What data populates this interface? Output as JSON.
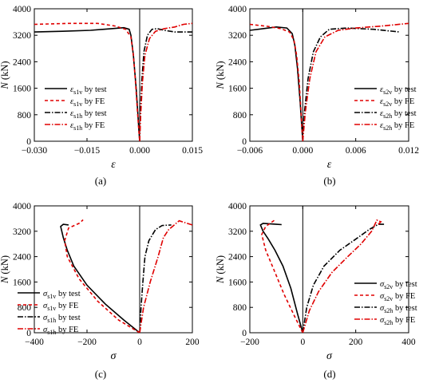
{
  "chart_data": [
    {
      "type": "line",
      "panel_label": "(a)",
      "xlabel": "ε",
      "ylabel": "N (kN)",
      "xlim": [
        -0.03,
        0.015
      ],
      "ylim": [
        0,
        4000
      ],
      "xticks": [
        -0.03,
        -0.015,
        0.0,
        0.015
      ],
      "xtick_labels": [
        "−0.030",
        "−0.015",
        "0.000",
        "0.015"
      ],
      "yticks": [
        0,
        800,
        1600,
        2400,
        3200,
        4000
      ],
      "ytick_labels": [
        "0",
        "800",
        "1600",
        "2400",
        "3200",
        "4000"
      ],
      "vline": 0,
      "legend": "bottom-left",
      "series": [
        {
          "name": "ε",
          "sub": "s1v",
          "suffix": " by test",
          "color": "#000000",
          "dash": "solid",
          "x": [
            -0.03,
            -0.022,
            -0.014,
            -0.008,
            -0.0045,
            -0.003,
            -0.0025,
            -0.0018,
            -0.001,
            -0.0005,
            -0.0002,
            0
          ],
          "y": [
            3300,
            3320,
            3350,
            3400,
            3430,
            3380,
            3200,
            2600,
            1600,
            800,
            300,
            0
          ]
        },
        {
          "name": "ε",
          "sub": "s1v",
          "suffix": " by FE",
          "color": "#e00000",
          "dash": "4,3",
          "x": [
            -0.03,
            -0.02,
            -0.012,
            -0.007,
            -0.004,
            -0.0025,
            -0.0018,
            -0.0012,
            -0.0007,
            -0.0003,
            0
          ],
          "y": [
            3530,
            3560,
            3560,
            3480,
            3380,
            3150,
            2600,
            1800,
            1000,
            400,
            0
          ]
        },
        {
          "name": "ε",
          "sub": "s1h",
          "suffix": " by test",
          "color": "#000000",
          "dash": "7,2,1.5,2",
          "x": [
            0,
            0.0002,
            0.0006,
            0.0012,
            0.0022,
            0.0035,
            0.005,
            0.007,
            0.01,
            0.015
          ],
          "y": [
            0,
            800,
            1800,
            2700,
            3200,
            3380,
            3400,
            3350,
            3300,
            3300
          ]
        },
        {
          "name": "ε",
          "sub": "s1h",
          "suffix": " by FE",
          "color": "#e00000",
          "dash": "7,2,1.5,2",
          "x": [
            0,
            0.0003,
            0.0008,
            0.0015,
            0.0028,
            0.0045,
            0.007,
            0.01,
            0.0125,
            0.015
          ],
          "y": [
            0,
            800,
            1800,
            2600,
            3100,
            3320,
            3400,
            3450,
            3530,
            3560
          ]
        }
      ],
      "caption": "(a)"
    },
    {
      "type": "line",
      "panel_label": "(b)",
      "xlabel": "ε",
      "ylabel": "N (kN)",
      "xlim": [
        -0.006,
        0.012
      ],
      "ylim": [
        0,
        4000
      ],
      "xticks": [
        -0.006,
        0.0,
        0.006,
        0.012
      ],
      "xtick_labels": [
        "−0.006",
        "0.000",
        "0.006",
        "0.012"
      ],
      "yticks": [
        0,
        800,
        1600,
        2400,
        3200,
        4000
      ],
      "ytick_labels": [
        "0",
        "800",
        "1600",
        "2400",
        "3200",
        "4000"
      ],
      "vline": 0,
      "legend": "bottom-right",
      "series": [
        {
          "name": "ε",
          "sub": "s2v",
          "suffix": " by test",
          "color": "#000000",
          "dash": "solid",
          "x": [
            -0.006,
            -0.0045,
            -0.003,
            -0.0018,
            -0.0012,
            -0.0009,
            -0.0006,
            -0.0003,
            -0.0001,
            0
          ],
          "y": [
            3350,
            3400,
            3450,
            3420,
            3250,
            2900,
            2200,
            1200,
            400,
            0
          ]
        },
        {
          "name": "ε",
          "sub": "s2v",
          "suffix": " by FE",
          "color": "#e00000",
          "dash": "4,3",
          "x": [
            -0.006,
            -0.004,
            -0.0025,
            -0.0015,
            -0.001,
            -0.0007,
            -0.0004,
            -0.0002,
            0
          ],
          "y": [
            3530,
            3470,
            3400,
            3300,
            3050,
            2600,
            1800,
            900,
            0
          ]
        },
        {
          "name": "ε",
          "sub": "s2h",
          "suffix": " by test",
          "color": "#000000",
          "dash": "7,2,1.5,2",
          "x": [
            0,
            0.0002,
            0.0006,
            0.0012,
            0.002,
            0.003,
            0.005,
            0.008,
            0.011
          ],
          "y": [
            0,
            900,
            1900,
            2700,
            3150,
            3380,
            3420,
            3380,
            3300
          ]
        },
        {
          "name": "ε",
          "sub": "s2h",
          "suffix": " by FE",
          "color": "#e00000",
          "dash": "7,2,1.5,2",
          "x": [
            0,
            0.0003,
            0.0008,
            0.0015,
            0.0025,
            0.004,
            0.006,
            0.009,
            0.012
          ],
          "y": [
            0,
            900,
            1900,
            2700,
            3150,
            3350,
            3420,
            3480,
            3560
          ]
        }
      ],
      "caption": "(b)"
    },
    {
      "type": "line",
      "panel_label": "(c)",
      "xlabel": "σ",
      "ylabel": "N (kN)",
      "xlim": [
        -400,
        200
      ],
      "ylim": [
        0,
        4000
      ],
      "xticks": [
        -400,
        -200,
        0,
        200
      ],
      "xtick_labels": [
        "−400",
        "−200",
        "0",
        "200"
      ],
      "yticks": [
        0,
        800,
        1600,
        2400,
        3200,
        4000
      ],
      "ytick_labels": [
        "0",
        "800",
        "1600",
        "2400",
        "3200",
        "4000"
      ],
      "vline": 0,
      "legend": "bottom-left",
      "series": [
        {
          "name": "σ",
          "sub": "s1v",
          "suffix": " by test",
          "color": "#000000",
          "dash": "solid",
          "x": [
            0,
            -60,
            -130,
            -200,
            -250,
            -275,
            -290,
            -300,
            -290,
            -270
          ],
          "y": [
            0,
            400,
            900,
            1500,
            2100,
            2600,
            3000,
            3350,
            3420,
            3400
          ]
        },
        {
          "name": "σ",
          "sub": "s1v",
          "suffix": " by FE",
          "color": "#e00000",
          "dash": "4,3",
          "x": [
            0,
            -80,
            -160,
            -230,
            -275,
            -285,
            -270,
            -230,
            -215
          ],
          "y": [
            0,
            400,
            1000,
            1700,
            2400,
            2900,
            3300,
            3450,
            3560
          ]
        },
        {
          "name": "σ",
          "sub": "s1h",
          "suffix": " by test",
          "color": "#000000",
          "dash": "7,2,1.5,2",
          "x": [
            0,
            5,
            12,
            20,
            35,
            60,
            85,
            120
          ],
          "y": [
            0,
            800,
            1600,
            2400,
            2900,
            3250,
            3380,
            3400
          ]
        },
        {
          "name": "σ",
          "sub": "s1h",
          "suffix": " by FE",
          "color": "#e00000",
          "dash": "7,2,1.5,2",
          "x": [
            0,
            15,
            40,
            70,
            90,
            110,
            150,
            180,
            200
          ],
          "y": [
            0,
            800,
            1600,
            2400,
            3000,
            3250,
            3530,
            3450,
            3400
          ]
        }
      ],
      "caption": "(c)"
    },
    {
      "type": "line",
      "panel_label": "(d)",
      "xlabel": "σ",
      "ylabel": "N (kN)",
      "xlim": [
        -200,
        400
      ],
      "ylim": [
        0,
        4000
      ],
      "xticks": [
        -200,
        0,
        200,
        400
      ],
      "xtick_labels": [
        "−200",
        "0",
        "200",
        "400"
      ],
      "yticks": [
        0,
        800,
        1600,
        2400,
        3200,
        4000
      ],
      "ytick_labels": [
        "0",
        "800",
        "1600",
        "2400",
        "3200",
        "4000"
      ],
      "vline": 0,
      "legend": "bottom-right",
      "series": [
        {
          "name": "σ",
          "sub": "s2v",
          "suffix": " by test",
          "color": "#000000",
          "dash": "solid",
          "x": [
            0,
            -20,
            -45,
            -75,
            -105,
            -130,
            -150,
            -160,
            -150,
            -100,
            -80
          ],
          "y": [
            0,
            600,
            1400,
            2100,
            2600,
            2950,
            3200,
            3400,
            3450,
            3420,
            3410
          ]
        },
        {
          "name": "σ",
          "sub": "s2v",
          "suffix": " by FE",
          "color": "#e00000",
          "dash": "4,3",
          "x": [
            0,
            -30,
            -70,
            -110,
            -140,
            -155,
            -140,
            -115,
            -105
          ],
          "y": [
            0,
            500,
            1200,
            2000,
            2600,
            3100,
            3350,
            3500,
            3560
          ]
        },
        {
          "name": "σ",
          "sub": "s2h",
          "suffix": " by test",
          "color": "#000000",
          "dash": "7,2,1.5,2",
          "x": [
            0,
            15,
            40,
            80,
            140,
            200,
            250,
            285,
            310
          ],
          "y": [
            0,
            800,
            1500,
            2100,
            2600,
            2950,
            3250,
            3420,
            3420
          ]
        },
        {
          "name": "σ",
          "sub": "s2h",
          "suffix": " by FE",
          "color": "#e00000",
          "dash": "7,2,1.5,2",
          "x": [
            0,
            25,
            60,
            110,
            170,
            220,
            260,
            280,
            295,
            285
          ],
          "y": [
            0,
            700,
            1300,
            1900,
            2400,
            2800,
            3200,
            3550,
            3500,
            3420
          ]
        }
      ],
      "caption": "(d)"
    }
  ]
}
